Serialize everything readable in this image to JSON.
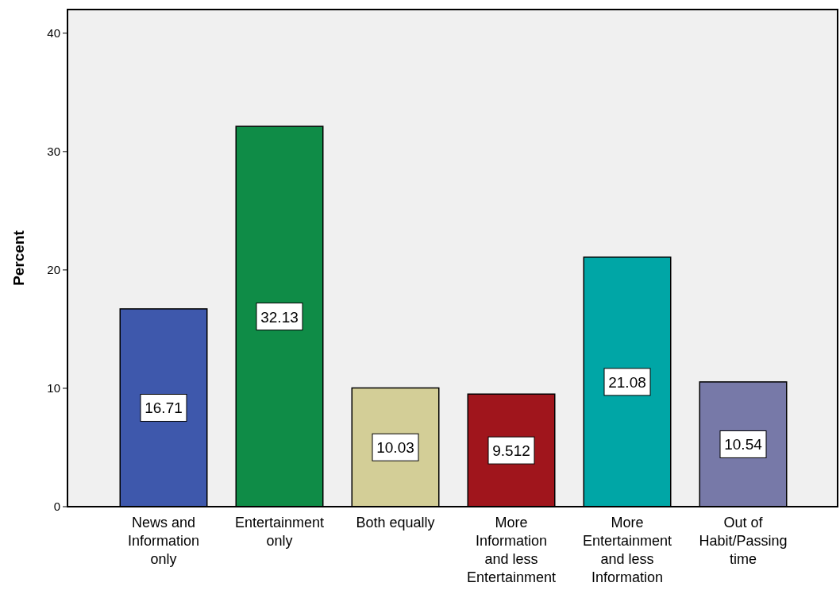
{
  "chart_data": {
    "type": "bar",
    "ylabel": "Percent",
    "categories": [
      "News and Information only",
      "Entertainment only",
      "Both equally",
      "More Information and less Entertainment",
      "More Entertainment and less Information",
      "Out of Habit/Passing time"
    ],
    "values": [
      16.71,
      32.13,
      10.03,
      9.512,
      21.08,
      10.54
    ],
    "colors": [
      "#3e58ac",
      "#0f8c47",
      "#d3ce97",
      "#a0151c",
      "#00a6a6",
      "#7779a8"
    ],
    "ylim": [
      0,
      42
    ],
    "yticks": [
      0,
      10,
      20,
      30,
      40
    ],
    "grid": false,
    "data_labels": true
  }
}
